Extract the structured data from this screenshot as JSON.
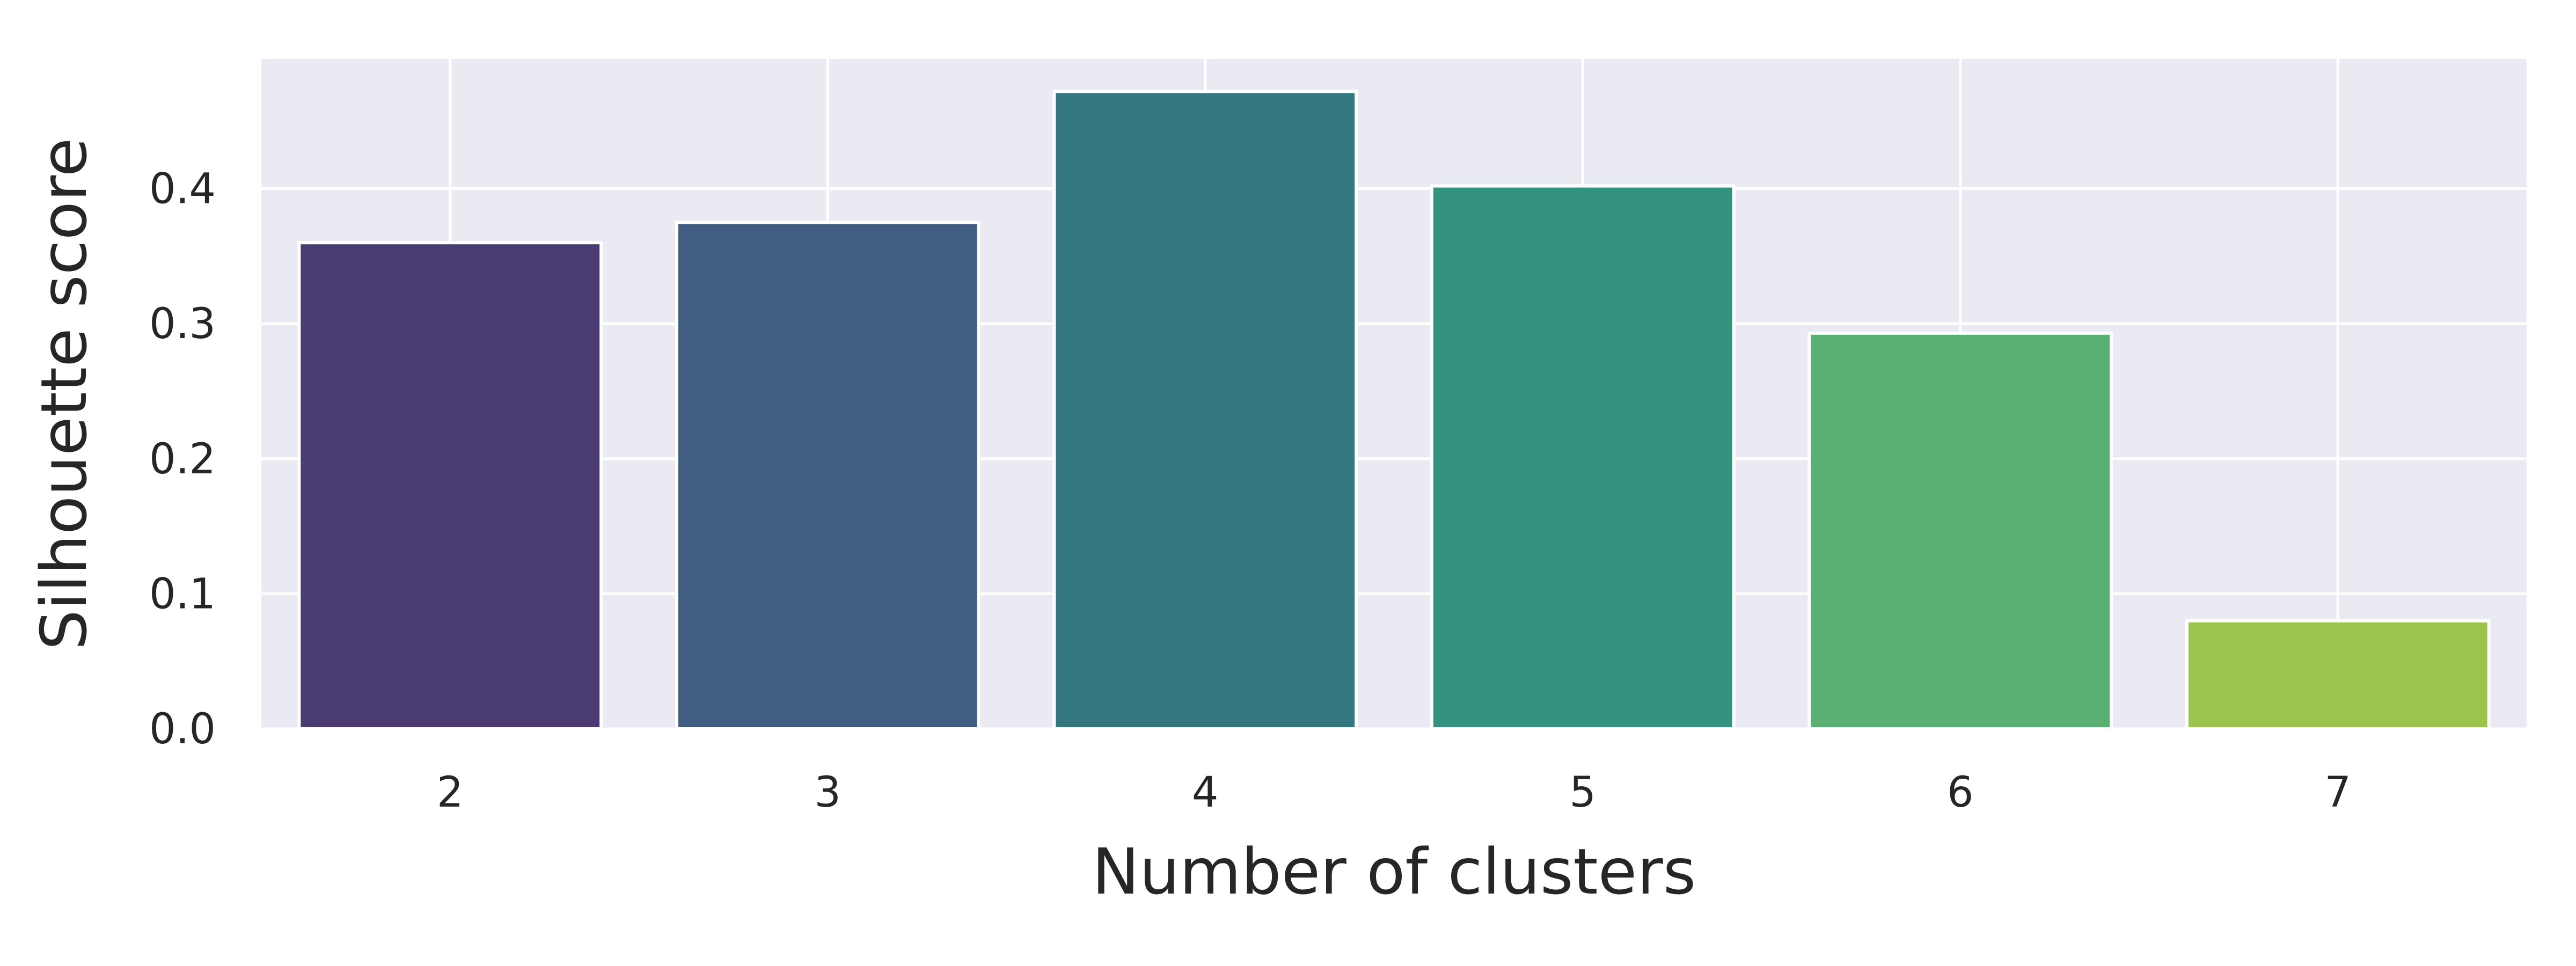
{
  "chart_data": {
    "type": "bar",
    "categories": [
      "2",
      "3",
      "4",
      "5",
      "6",
      "7"
    ],
    "values": [
      0.36,
      0.375,
      0.472,
      0.402,
      0.293,
      0.08
    ],
    "colors": [
      "#4a3b73",
      "#415e82",
      "#357780",
      "#33937f",
      "#5ab073",
      "#9ac44d"
    ],
    "title": "",
    "xlabel": "Number of clusters",
    "ylabel": "Silhouette score",
    "ylim": [
      0,
      0.496
    ],
    "yticks": [
      0.0,
      0.1,
      0.2,
      0.3,
      0.4
    ],
    "ytick_labels": [
      "0.0",
      "0.1",
      "0.2",
      "0.3",
      "0.4"
    ],
    "grid": true,
    "background_color": "#eaeaf2",
    "grid_color": "#ffffff"
  }
}
